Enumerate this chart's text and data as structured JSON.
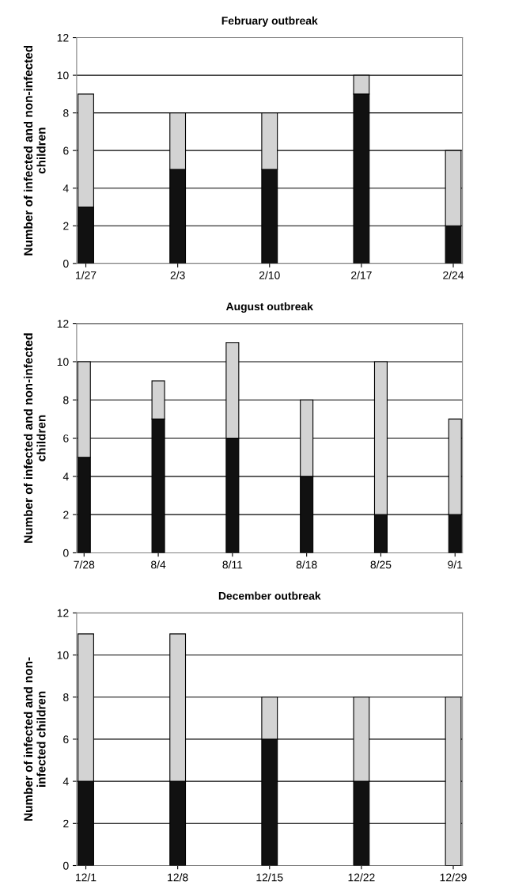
{
  "chart_data": [
    {
      "type": "bar",
      "title": "February outbreak",
      "ylabel": "Number of infected and non-infected\nchildren",
      "categories": [
        "1/27",
        "2/3",
        "2/10",
        "2/17",
        "2/24"
      ],
      "stacked": true,
      "ylim": [
        0,
        12
      ],
      "yticks": [
        0,
        2,
        4,
        6,
        8,
        10,
        12
      ],
      "grid": "y",
      "series": [
        {
          "color": "#111111",
          "values": [
            3,
            5,
            5,
            9,
            2
          ]
        },
        {
          "color": "#d3d3d3",
          "values": [
            6,
            3,
            3,
            1,
            4
          ]
        }
      ]
    },
    {
      "type": "bar",
      "title": "August outbreak",
      "ylabel": "Number of infected and non-infected\nchildren",
      "categories": [
        "7/28",
        "8/4",
        "8/11",
        "8/18",
        "8/25",
        "9/1"
      ],
      "stacked": true,
      "ylim": [
        0,
        12
      ],
      "yticks": [
        0,
        2,
        4,
        6,
        8,
        10,
        12
      ],
      "grid": "y",
      "series": [
        {
          "color": "#111111",
          "values": [
            5,
            7,
            6,
            4,
            2,
            2
          ]
        },
        {
          "color": "#d3d3d3",
          "values": [
            5,
            2,
            5,
            4,
            8,
            5
          ]
        }
      ]
    },
    {
      "type": "bar",
      "title": "December outbreak",
      "ylabel": "Number of infected and non-\ninfected children",
      "categories": [
        "12/1",
        "12/8",
        "12/15",
        "12/22",
        "12/29"
      ],
      "stacked": true,
      "ylim": [
        0,
        12
      ],
      "yticks": [
        0,
        2,
        4,
        6,
        8,
        10,
        12
      ],
      "grid": "y",
      "series": [
        {
          "color": "#111111",
          "values": [
            4,
            4,
            6,
            4,
            0
          ]
        },
        {
          "color": "#d3d3d3",
          "values": [
            7,
            7,
            2,
            4,
            8
          ]
        }
      ]
    }
  ]
}
